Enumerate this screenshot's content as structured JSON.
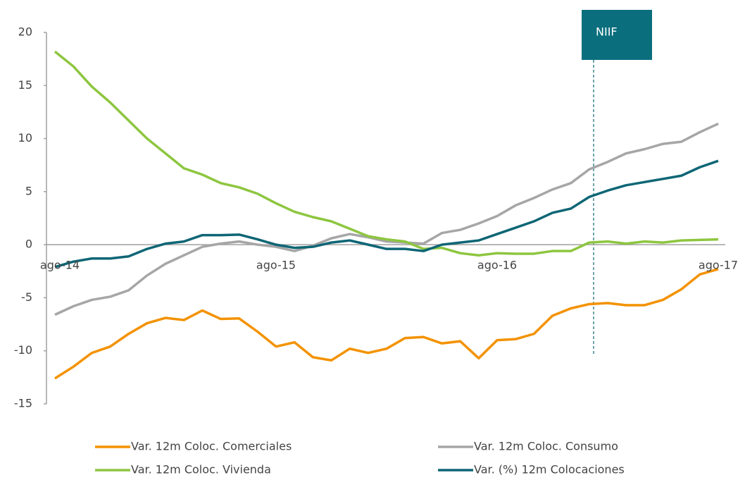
{
  "chart_data": {
    "type": "line",
    "categories": [
      "ago-14",
      null,
      null,
      null,
      null,
      null,
      null,
      null,
      null,
      null,
      null,
      null,
      "ago-15",
      null,
      null,
      null,
      null,
      null,
      null,
      null,
      null,
      null,
      null,
      null,
      "ago-16",
      null,
      null,
      null,
      null,
      null,
      null,
      null,
      null,
      null,
      null,
      null,
      "ago-17"
    ],
    "series": [
      {
        "name": "Var. 12m Coloc. Comerciales",
        "color": "#f39200",
        "values": [
          -12.6,
          -11.5,
          -10.2,
          -9.6,
          -8.4,
          -7.4,
          -6.9,
          -7.1,
          -6.2,
          -7.0,
          -6.95,
          -8.2,
          -9.6,
          -9.2,
          -10.6,
          -10.9,
          -9.8,
          -10.2,
          -9.8,
          -8.8,
          -8.7,
          -9.3,
          -9.1,
          -10.7,
          -9.0,
          -8.9,
          -8.4,
          -6.7,
          -6.0,
          -5.6,
          -5.5,
          -5.7,
          -5.7,
          -5.2,
          -4.2,
          -2.8,
          -2.3
        ]
      },
      {
        "name": "Var. 12m Coloc. Consumo",
        "color": "#a6a6a6",
        "values": [
          -6.6,
          -5.8,
          -5.2,
          -4.9,
          -4.3,
          -2.9,
          -1.8,
          -1.0,
          -0.2,
          0.1,
          0.3,
          0.0,
          -0.2,
          -0.6,
          -0.1,
          0.6,
          1.0,
          0.7,
          0.3,
          0.2,
          0.1,
          1.1,
          1.4,
          2.0,
          2.7,
          3.7,
          4.4,
          5.2,
          5.8,
          7.1,
          7.8,
          8.6,
          9.0,
          9.5,
          9.7,
          10.6,
          11.4
        ]
      },
      {
        "name": "Var. 12m Coloc. Vivienda",
        "color": "#8dc63f",
        "values": [
          18.2,
          16.8,
          14.9,
          13.4,
          11.7,
          10.0,
          8.6,
          7.2,
          6.6,
          5.8,
          5.4,
          4.8,
          3.9,
          3.1,
          2.6,
          2.2,
          1.5,
          0.8,
          0.5,
          0.3,
          -0.4,
          -0.3,
          -0.8,
          -1.0,
          -0.8,
          -0.85,
          -0.85,
          -0.6,
          -0.6,
          0.2,
          0.3,
          0.1,
          0.3,
          0.2,
          0.4,
          0.45,
          0.5
        ]
      },
      {
        "name": "Var. (%) 12m Colocaciones",
        "color": "#0e6675",
        "values": [
          -2.1,
          -1.6,
          -1.3,
          -1.3,
          -1.1,
          -0.4,
          0.1,
          0.3,
          0.9,
          0.9,
          0.95,
          0.5,
          0.0,
          -0.3,
          -0.2,
          0.2,
          0.4,
          0.0,
          -0.4,
          -0.4,
          -0.6,
          0.0,
          0.2,
          0.4,
          1.0,
          1.6,
          2.2,
          3.0,
          3.4,
          4.5,
          5.1,
          5.6,
          5.9,
          6.2,
          6.5,
          7.3,
          7.9
        ]
      }
    ],
    "ylim": [
      -15,
      20
    ],
    "yticks": [
      -15,
      -10,
      -5,
      0,
      5,
      10,
      15,
      20
    ],
    "annotation": "NIIF"
  }
}
